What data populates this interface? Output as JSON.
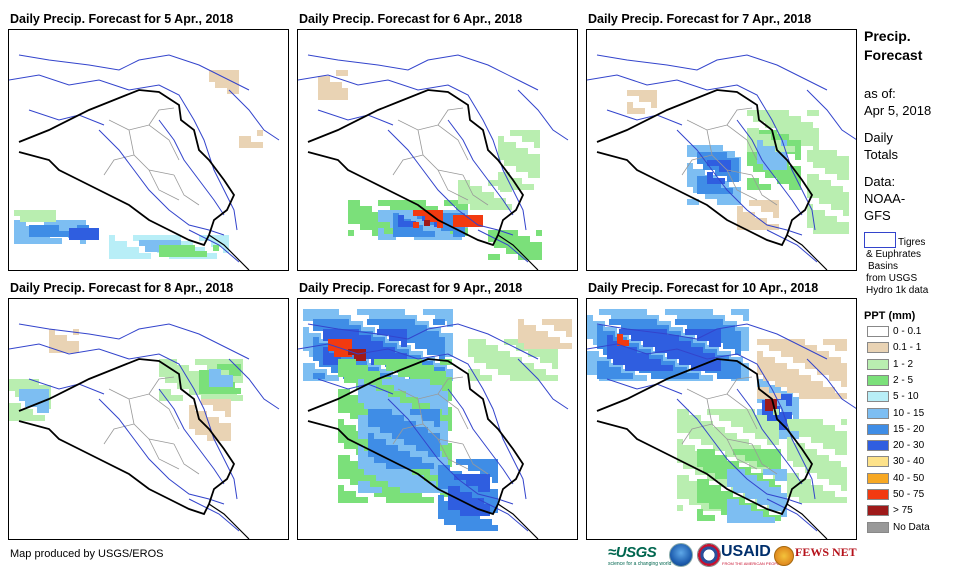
{
  "panels": [
    {
      "title": "Daily Precip. Forecast for 5 Apr., 2018"
    },
    {
      "title": "Daily Precip. Forecast for 6 Apr., 2018"
    },
    {
      "title": "Daily Precip. Forecast for 7 Apr., 2018"
    },
    {
      "title": "Daily Precip. Forecast for 8 Apr., 2018"
    },
    {
      "title": "Daily Precip. Forecast for 9 Apr., 2018"
    },
    {
      "title": "Daily Precip. Forecast for 10 Apr., 2018"
    }
  ],
  "sidebar": {
    "title_line1": "Precip.",
    "title_line2": "Forecast",
    "asof_label": "as of:",
    "asof_date": "Apr 5, 2018",
    "totals_line1": "Daily",
    "totals_line2": "Totals",
    "data_label": "Data:",
    "data_src1": "NOAA-",
    "data_src2": "GFS",
    "basin_line1": "Tigres",
    "basin_line2": "& Euphrates",
    "basin_line3": "Basins",
    "basin_line4": "from USGS",
    "basin_line5": "Hydro 1k data"
  },
  "legend": {
    "title": "PPT (mm)",
    "items": [
      {
        "label": "0 - 0.1",
        "color": "#ffffff"
      },
      {
        "label": "0.1 - 1",
        "color": "#e9d3b4"
      },
      {
        "label": "1 - 2",
        "color": "#b9eeb0"
      },
      {
        "label": "2 - 5",
        "color": "#7be07a"
      },
      {
        "label": "5 - 10",
        "color": "#b8eef7"
      },
      {
        "label": "10 - 15",
        "color": "#7dbef2"
      },
      {
        "label": "15 - 20",
        "color": "#3f8de6"
      },
      {
        "label": "20 - 30",
        "color": "#2f5ee0"
      },
      {
        "label": "30 - 40",
        "color": "#fde28a"
      },
      {
        "label": "40 - 50",
        "color": "#f7a823"
      },
      {
        "label": "50 - 75",
        "color": "#f23a10"
      },
      {
        "label": "> 75",
        "color": "#9e1a1a"
      },
      {
        "label": "No Data",
        "color": "#999999"
      }
    ]
  },
  "footer": {
    "credit": "Map produced by USGS/EROS"
  },
  "logos": {
    "usgs": "≈USGS",
    "usgs_tagline": "science for a changing world",
    "usaid": "USAID",
    "usaid_tagline": "FROM THE AMERICAN PEOPLE",
    "fews": "FEWS NET"
  }
}
